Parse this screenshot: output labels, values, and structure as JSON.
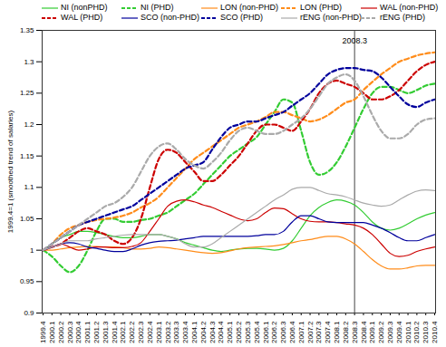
{
  "chart_data": {
    "type": "line",
    "y_label": "1999.4=1 (smoothed trend of salaries)",
    "categories": [
      "1999.4",
      "2000.1",
      "2000.2",
      "2000.3",
      "2000.4",
      "2001.1",
      "2001.2",
      "2001.3",
      "2001.4",
      "2002.1",
      "2002.2",
      "2002.3",
      "2002.4",
      "2003.1",
      "2003.2",
      "2003.3",
      "2003.4",
      "2004.1",
      "2004.2",
      "2004.3",
      "2004.4",
      "2005.1",
      "2005.2",
      "2005.3",
      "2005.4",
      "2006.1",
      "2006.2",
      "2006.3",
      "2006.4",
      "2007.1",
      "2007.2",
      "2007.3",
      "2007.4",
      "2008.1",
      "2008.2",
      "2008.3",
      "2008.4",
      "2009.1",
      "2009.2",
      "2009.3",
      "2009.4",
      "2010.1",
      "2010.2",
      "2010.3",
      "2010.4"
    ],
    "ylim": [
      0.9,
      1.35
    ],
    "yticks": [
      0.9,
      0.95,
      1,
      1.05,
      1.1,
      1.15,
      1.2,
      1.25,
      1.3,
      1.35
    ],
    "grid": false,
    "legend": "top",
    "annotations": [
      {
        "x": "2008.3",
        "text": "2008.3"
      }
    ],
    "series": [
      {
        "name": "NI (nonPHD)",
        "color": "#33cc33",
        "line_style": "solid",
        "values": [
          1.0,
          1.01,
          1.02,
          1.025,
          1.03,
          1.03,
          1.028,
          1.025,
          1.022,
          1.02,
          1.02,
          1.022,
          1.025,
          1.025,
          1.022,
          1.018,
          1.012,
          1.008,
          1.004,
          1.0,
          0.998,
          1.0,
          1.002,
          1.003,
          1.003,
          1.002,
          1.0,
          1.003,
          1.015,
          1.035,
          1.055,
          1.068,
          1.076,
          1.08,
          1.078,
          1.072,
          1.06,
          1.045,
          1.035,
          1.032,
          1.035,
          1.042,
          1.05,
          1.056,
          1.06
        ]
      },
      {
        "name": "NI (PHD)",
        "color": "#33cc33",
        "line_style": "dashed",
        "values": [
          1.0,
          0.99,
          0.975,
          0.965,
          0.975,
          1.0,
          1.03,
          1.05,
          1.05,
          1.045,
          1.045,
          1.048,
          1.05,
          1.055,
          1.06,
          1.07,
          1.08,
          1.09,
          1.105,
          1.12,
          1.135,
          1.15,
          1.16,
          1.17,
          1.18,
          1.2,
          1.22,
          1.24,
          1.235,
          1.19,
          1.14,
          1.12,
          1.125,
          1.14,
          1.165,
          1.195,
          1.225,
          1.25,
          1.26,
          1.26,
          1.255,
          1.25,
          1.255,
          1.262,
          1.265
        ]
      },
      {
        "name": "LON (non-PHD)",
        "color": "#ff8c1a",
        "line_style": "solid",
        "values": [
          1.0,
          1.0,
          1.002,
          1.004,
          1.005,
          1.006,
          1.006,
          1.005,
          1.005,
          1.004,
          1.002,
          1.002,
          1.003,
          1.005,
          1.004,
          1.002,
          1.0,
          0.998,
          0.996,
          0.995,
          0.996,
          0.999,
          1.002,
          1.004,
          1.005,
          1.006,
          1.007,
          1.009,
          1.012,
          1.015,
          1.017,
          1.02,
          1.022,
          1.022,
          1.018,
          1.01,
          0.998,
          0.985,
          0.975,
          0.97,
          0.97,
          0.972,
          0.975,
          0.976,
          0.976
        ]
      },
      {
        "name": "LON (PHD)",
        "color": "#ff8c1a",
        "line_style": "dashed",
        "values": [
          1.0,
          1.01,
          1.025,
          1.035,
          1.04,
          1.045,
          1.048,
          1.05,
          1.052,
          1.055,
          1.06,
          1.068,
          1.075,
          1.085,
          1.1,
          1.115,
          1.13,
          1.145,
          1.155,
          1.165,
          1.175,
          1.185,
          1.195,
          1.2,
          1.205,
          1.212,
          1.22,
          1.22,
          1.215,
          1.21,
          1.205,
          1.208,
          1.215,
          1.225,
          1.235,
          1.24,
          1.255,
          1.268,
          1.28,
          1.29,
          1.3,
          1.305,
          1.31,
          1.313,
          1.315
        ]
      },
      {
        "name": "WAL (non-PHD)",
        "color": "#cc0000",
        "line_style": "solid",
        "values": [
          1.0,
          1.005,
          1.01,
          1.005,
          1.0,
          1.002,
          1.005,
          1.005,
          1.004,
          1.004,
          1.006,
          1.012,
          1.03,
          1.05,
          1.07,
          1.078,
          1.08,
          1.077,
          1.072,
          1.068,
          1.062,
          1.056,
          1.05,
          1.047,
          1.05,
          1.06,
          1.067,
          1.066,
          1.058,
          1.05,
          1.046,
          1.045,
          1.045,
          1.044,
          1.042,
          1.04,
          1.035,
          1.025,
          1.01,
          0.995,
          0.99,
          0.992,
          0.998,
          1.002,
          1.005
        ]
      },
      {
        "name": "WAL (PHD)",
        "color": "#cc0000",
        "line_style": "dashed",
        "values": [
          1.0,
          1.005,
          1.01,
          1.02,
          1.03,
          1.035,
          1.03,
          1.025,
          1.015,
          1.01,
          1.02,
          1.05,
          1.1,
          1.145,
          1.16,
          1.155,
          1.14,
          1.125,
          1.11,
          1.11,
          1.12,
          1.135,
          1.15,
          1.17,
          1.19,
          1.2,
          1.2,
          1.195,
          1.19,
          1.205,
          1.225,
          1.25,
          1.265,
          1.27,
          1.265,
          1.26,
          1.25,
          1.24,
          1.24,
          1.245,
          1.255,
          1.27,
          1.285,
          1.295,
          1.3
        ]
      },
      {
        "name": "SCO (non-PHD)",
        "color": "#00009c",
        "line_style": "solid",
        "values": [
          1.0,
          1.005,
          1.01,
          1.012,
          1.01,
          1.005,
          1.003,
          1.0,
          0.998,
          0.998,
          1.002,
          1.008,
          1.012,
          1.014,
          1.015,
          1.016,
          1.018,
          1.02,
          1.022,
          1.022,
          1.022,
          1.022,
          1.022,
          1.022,
          1.023,
          1.025,
          1.025,
          1.03,
          1.045,
          1.055,
          1.055,
          1.05,
          1.045,
          1.044,
          1.044,
          1.044,
          1.044,
          1.04,
          1.035,
          1.028,
          1.02,
          1.015,
          1.015,
          1.02,
          1.025
        ]
      },
      {
        "name": "SCO (PHD)",
        "color": "#00009c",
        "line_style": "dashed",
        "values": [
          1.0,
          1.01,
          1.02,
          1.03,
          1.04,
          1.045,
          1.05,
          1.055,
          1.06,
          1.065,
          1.07,
          1.08,
          1.09,
          1.1,
          1.11,
          1.12,
          1.13,
          1.135,
          1.14,
          1.16,
          1.18,
          1.195,
          1.2,
          1.205,
          1.205,
          1.21,
          1.215,
          1.22,
          1.23,
          1.24,
          1.25,
          1.265,
          1.28,
          1.287,
          1.29,
          1.29,
          1.287,
          1.285,
          1.275,
          1.26,
          1.245,
          1.232,
          1.228,
          1.235,
          1.24
        ]
      },
      {
        "name": "rENG (non-PHD)",
        "color": "#aaaaaa",
        "line_style": "solid",
        "values": [
          1.0,
          1.005,
          1.01,
          1.015,
          1.015,
          1.015,
          1.018,
          1.02,
          1.022,
          1.024,
          1.025,
          1.025,
          1.025,
          1.025,
          1.022,
          1.018,
          1.01,
          1.005,
          1.005,
          1.01,
          1.02,
          1.03,
          1.04,
          1.05,
          1.06,
          1.07,
          1.08,
          1.088,
          1.097,
          1.1,
          1.1,
          1.095,
          1.09,
          1.088,
          1.085,
          1.08,
          1.075,
          1.072,
          1.07,
          1.072,
          1.08,
          1.088,
          1.094,
          1.096,
          1.095
        ]
      },
      {
        "name": "rENG (PHD)",
        "color": "#aaaaaa",
        "line_style": "dashed",
        "values": [
          1.0,
          1.01,
          1.02,
          1.03,
          1.04,
          1.05,
          1.06,
          1.07,
          1.075,
          1.085,
          1.1,
          1.125,
          1.15,
          1.165,
          1.17,
          1.16,
          1.145,
          1.135,
          1.13,
          1.14,
          1.155,
          1.175,
          1.19,
          1.195,
          1.19,
          1.185,
          1.185,
          1.19,
          1.2,
          1.21,
          1.225,
          1.245,
          1.265,
          1.275,
          1.28,
          1.27,
          1.245,
          1.215,
          1.19,
          1.178,
          1.178,
          1.185,
          1.2,
          1.208,
          1.21
        ]
      }
    ]
  }
}
